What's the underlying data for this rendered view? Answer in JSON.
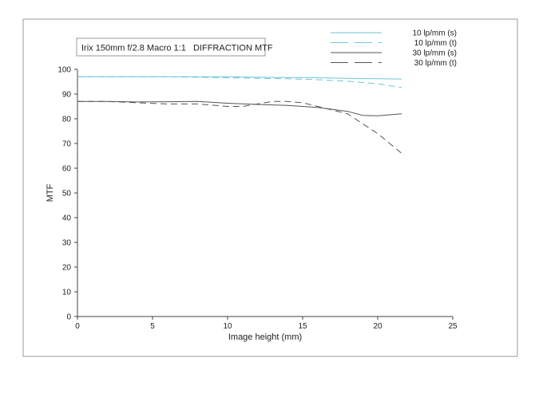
{
  "chart_data": {
    "type": "line",
    "title": "Irix 150mm f/2.8 Macro 1:1   DIFFRACTION MTF",
    "xlabel": "Image height (mm)",
    "ylabel": "MTF",
    "xlim": [
      0,
      25
    ],
    "ylim": [
      0,
      100
    ],
    "x_ticks": [
      0,
      5,
      10,
      15,
      20,
      25
    ],
    "y_ticks": [
      0,
      10,
      20,
      30,
      40,
      50,
      60,
      70,
      80,
      90,
      100
    ],
    "grid": false,
    "legend_position": "top-right",
    "series": [
      {
        "name": "10 lp/mm (s)",
        "color": "#6ec6d6",
        "dash": "solid",
        "x": [
          0,
          2,
          4,
          6,
          8,
          10,
          12,
          14,
          16,
          18,
          20,
          21.6
        ],
        "y": [
          97,
          97,
          97,
          97,
          97,
          97,
          96.8,
          96.7,
          96.6,
          96.4,
          96.2,
          96.1
        ]
      },
      {
        "name": "10 lp/mm (t)",
        "color": "#6ec6d6",
        "dash": "dashed",
        "x": [
          0,
          2,
          4,
          6,
          8,
          10,
          12,
          14,
          16,
          18,
          20,
          21.6
        ],
        "y": [
          97,
          97,
          97,
          97,
          96.8,
          96.6,
          96.4,
          96.2,
          95.8,
          95.2,
          94.2,
          92.6
        ]
      },
      {
        "name": "30 lp/mm (s)",
        "color": "#555555",
        "dash": "solid",
        "x": [
          0,
          2,
          4,
          6,
          8,
          10,
          12,
          14,
          16,
          18,
          19,
          20,
          21.6
        ],
        "y": [
          87,
          87,
          86.8,
          86.9,
          87,
          86.3,
          85.8,
          85.4,
          84.6,
          83,
          81.4,
          81.2,
          82
        ]
      },
      {
        "name": "30 lp/mm (t)",
        "color": "#555555",
        "dash": "dashed",
        "x": [
          0,
          2,
          4,
          6,
          8,
          10,
          11,
          12,
          13,
          14,
          15,
          16,
          18,
          19,
          20,
          21.6
        ],
        "y": [
          87,
          87,
          86.5,
          86,
          86,
          85,
          85,
          86,
          87,
          87,
          86.5,
          85,
          82,
          78,
          74,
          66
        ]
      }
    ]
  }
}
